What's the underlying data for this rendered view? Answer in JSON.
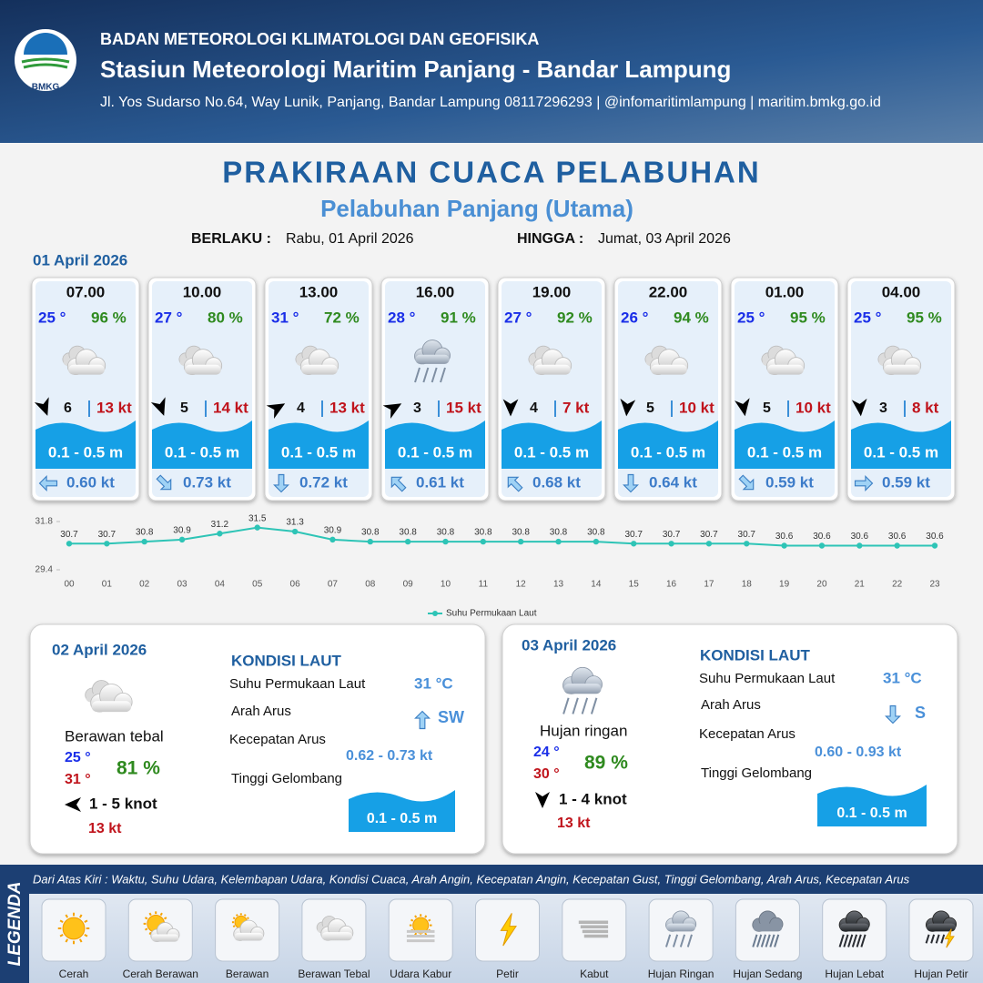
{
  "header": {
    "logo": "BMKG",
    "agency": "BADAN METEOROLOGI KLIMATOLOGI DAN GEOFISIKA",
    "station": "Stasiun Meteorologi Maritim Panjang - Bandar Lampung",
    "address": "Jl. Yos Sudarso No.64, Way Lunik, Panjang, Bandar Lampung 08117296293 | @infomaritimlampung | maritim.bmkg.go.id"
  },
  "title": "PRAKIRAAN CUACA PELABUHAN",
  "subtitle": "Pelabuhan Panjang (Utama)",
  "validity": {
    "from_label": "BERLAKU :",
    "from": "Rabu, 01 April 2026",
    "to_label": "HINGGA :",
    "to": "Jumat, 03 April 2026"
  },
  "forecast_date": "01 April 2026",
  "cards": [
    {
      "time": "07.00",
      "temp": "25 °",
      "humidity": "96 %",
      "wind": "6",
      "gust": "13 kt",
      "wave": "0.1 - 0.5 m",
      "current": "0.60 kt"
    },
    {
      "time": "10.00",
      "temp": "27 °",
      "humidity": "80 %",
      "wind": "5",
      "gust": "14 kt",
      "wave": "0.1 - 0.5 m",
      "current": "0.73 kt"
    },
    {
      "time": "13.00",
      "temp": "31 °",
      "humidity": "72 %",
      "wind": "4",
      "gust": "13 kt",
      "wave": "0.1 - 0.5 m",
      "current": "0.72 kt"
    },
    {
      "time": "16.00",
      "temp": "28 °",
      "humidity": "91 %",
      "wind": "3",
      "gust": "15 kt",
      "wave": "0.1 - 0.5 m",
      "current": "0.61 kt"
    },
    {
      "time": "19.00",
      "temp": "27 °",
      "humidity": "92 %",
      "wind": "4",
      "gust": "7 kt",
      "wave": "0.1 - 0.5 m",
      "current": "0.68 kt"
    },
    {
      "time": "22.00",
      "temp": "26 °",
      "humidity": "94 %",
      "wind": "5",
      "gust": "10 kt",
      "wave": "0.1 - 0.5 m",
      "current": "0.64 kt"
    },
    {
      "time": "01.00",
      "temp": "25 °",
      "humidity": "95 %",
      "wind": "5",
      "gust": "10 kt",
      "wave": "0.1 - 0.5 m",
      "current": "0.59 kt"
    },
    {
      "time": "04.00",
      "temp": "25 °",
      "humidity": "95 %",
      "wind": "3",
      "gust": "8 kt",
      "wave": "0.1 - 0.5 m",
      "current": "0.59 kt"
    }
  ],
  "chart_data": {
    "type": "line",
    "x": [
      "00",
      "01",
      "02",
      "03",
      "04",
      "05",
      "06",
      "07",
      "08",
      "09",
      "10",
      "11",
      "12",
      "13",
      "14",
      "15",
      "16",
      "17",
      "18",
      "19",
      "20",
      "21",
      "22",
      "23"
    ],
    "series": [
      {
        "name": "Suhu Permukaan Laut",
        "color": "#2ec4b6",
        "values": [
          30.7,
          30.7,
          30.8,
          30.9,
          31.2,
          31.5,
          31.3,
          30.9,
          30.8,
          30.8,
          30.8,
          30.8,
          30.8,
          30.8,
          30.8,
          30.7,
          30.7,
          30.7,
          30.7,
          30.6,
          30.6,
          30.6,
          30.6,
          30.6
        ]
      }
    ],
    "ylim": [
      29.4,
      31.8
    ],
    "yticks": [
      29.4,
      31.8
    ],
    "legend": "bottom"
  },
  "days": [
    {
      "date": "02 April 2026",
      "weather": "Berawan tebal",
      "temp_min": "25 °",
      "temp_max": "31 °",
      "humidity": "81 %",
      "wind": "1 - 5 knot",
      "gust": "13 kt",
      "sea": {
        "heading": "KONDISI LAUT",
        "sst_label": "Suhu Permukaan Laut",
        "sst": "31 °C",
        "dir_label": "Arah Arus",
        "dir": "SW",
        "speed_label": "Kecepatan Arus",
        "speed": "0.62 - 0.73 kt",
        "wave_label": "Tinggi Gelombang",
        "wave": "0.1 - 0.5 m"
      }
    },
    {
      "date": "03 April 2026",
      "weather": "Hujan ringan",
      "temp_min": "24 °",
      "temp_max": "30 °",
      "humidity": "89 %",
      "wind": "1 - 4 knot",
      "gust": "13 kt",
      "sea": {
        "heading": "KONDISI LAUT",
        "sst_label": "Suhu Permukaan Laut",
        "sst": "31 °C",
        "dir_label": "Arah Arus",
        "dir": "S",
        "speed_label": "Kecepatan Arus",
        "speed": "0.60 - 0.93 kt",
        "wave_label": "Tinggi Gelombang",
        "wave": "0.1 - 0.5 m"
      }
    }
  ],
  "legend": {
    "title": "LEGENDA",
    "description": "Dari Atas Kiri : Waktu, Suhu Udara, Kelembapan Udara, Kondisi Cuaca, Arah Angin, Kecepatan Angin, Kecepatan Gust, Tinggi Gelombang, Arah Arus, Kecepatan Arus",
    "items": [
      "Cerah",
      "Cerah Berawan",
      "Berawan",
      "Berawan Tebal",
      "Udara Kabur",
      "Petir",
      "Kabut",
      "Hujan Ringan",
      "Hujan Sedang",
      "Hujan Lebat",
      "Hujan Petir"
    ]
  }
}
